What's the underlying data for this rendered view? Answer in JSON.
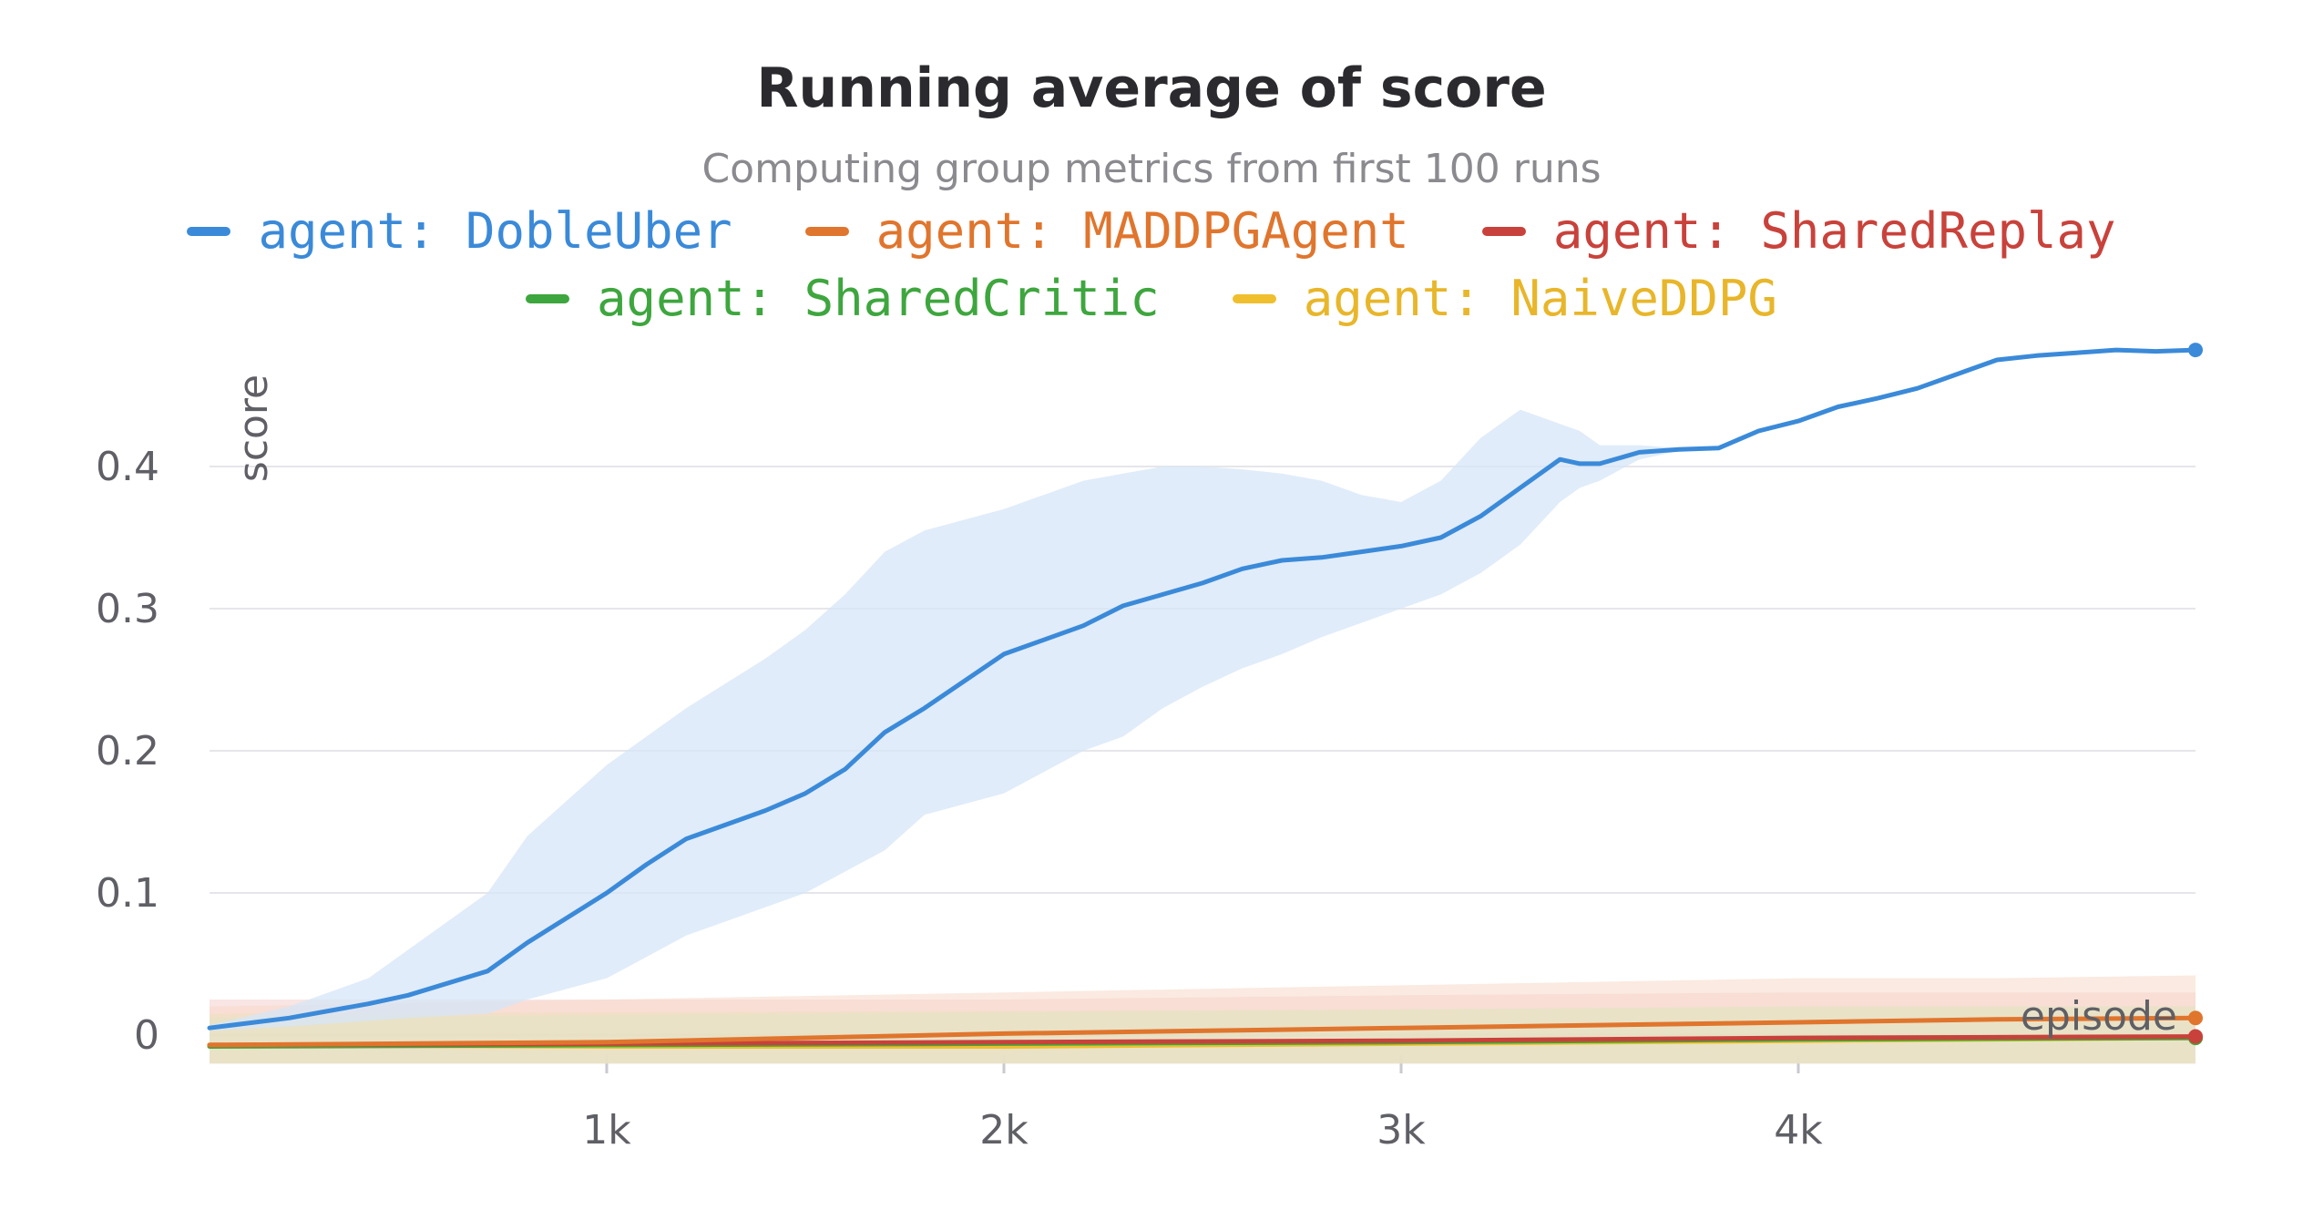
{
  "chart_data": {
    "type": "line",
    "title": "Running average of score",
    "subtitle": "Computing group metrics from first 100 runs",
    "xlabel": "episode",
    "ylabel": "score",
    "xlim": [
      0,
      5000
    ],
    "ylim": [
      -0.03,
      0.48
    ],
    "x_ticks": [
      1000,
      2000,
      3000,
      4000
    ],
    "x_tick_labels": [
      "1k",
      "2k",
      "3k",
      "4k"
    ],
    "y_ticks": [
      0,
      0.1,
      0.2,
      0.3,
      0.4
    ],
    "y_tick_labels": [
      "0",
      "0.1",
      "0.2",
      "0.3",
      "0.4"
    ],
    "grid": true,
    "legend_position": "top",
    "series": [
      {
        "name": "agent: DobleUber",
        "color": "#3b8ad9",
        "band_color": "#d5e6f7",
        "x": [
          0,
          200,
          400,
          500,
          700,
          800,
          1000,
          1100,
          1200,
          1400,
          1500,
          1600,
          1700,
          1800,
          2000,
          2100,
          2200,
          2300,
          2400,
          2500,
          2600,
          2700,
          2800,
          2900,
          3000,
          3100,
          3200,
          3300,
          3400,
          3450,
          3500,
          3600,
          3700,
          3800,
          3900,
          4000,
          4100,
          4200,
          4300,
          4400,
          4500,
          4600,
          4700,
          4800,
          4900,
          5000
        ],
        "values": [
          0.005,
          0.012,
          0.022,
          0.028,
          0.045,
          0.065,
          0.1,
          0.12,
          0.138,
          0.158,
          0.17,
          0.187,
          0.213,
          0.23,
          0.268,
          0.278,
          0.288,
          0.302,
          0.31,
          0.318,
          0.328,
          0.334,
          0.336,
          0.34,
          0.344,
          0.35,
          0.365,
          0.385,
          0.405,
          0.402,
          0.402,
          0.41,
          0.412,
          0.413,
          0.425,
          0.432,
          0.442,
          0.448,
          0.455,
          0.465,
          0.475,
          0.478,
          0.48,
          0.482,
          0.481,
          0.482
        ],
        "band_upper": [
          0.007,
          0.02,
          0.04,
          0.06,
          0.1,
          0.14,
          0.19,
          0.21,
          0.23,
          0.265,
          0.285,
          0.31,
          0.34,
          0.355,
          0.37,
          0.38,
          0.39,
          0.395,
          0.4,
          0.4,
          0.398,
          0.395,
          0.39,
          0.38,
          0.375,
          0.39,
          0.42,
          0.44,
          0.43,
          0.425,
          0.415,
          0.415,
          0.413,
          0.414,
          0.426,
          0.433,
          0.443,
          0.449,
          0.456,
          0.466,
          0.476,
          0.479,
          0.481,
          0.483,
          0.482,
          0.483
        ],
        "band_lower": [
          0.003,
          0.006,
          0.01,
          0.012,
          0.015,
          0.025,
          0.04,
          0.055,
          0.07,
          0.09,
          0.1,
          0.115,
          0.13,
          0.155,
          0.17,
          0.185,
          0.2,
          0.21,
          0.23,
          0.245,
          0.258,
          0.268,
          0.28,
          0.29,
          0.3,
          0.31,
          0.325,
          0.345,
          0.375,
          0.385,
          0.39,
          0.405,
          0.411,
          0.412,
          0.424,
          0.431,
          0.441,
          0.447,
          0.454,
          0.464,
          0.474,
          0.477,
          0.479,
          0.481,
          0.48,
          0.481
        ]
      },
      {
        "name": "agent: MADDPGAgent",
        "color": "#e0752d",
        "band_color": "#f7d9c8",
        "x": [
          0,
          1000,
          2000,
          3000,
          4000,
          4500,
          5000
        ],
        "values": [
          -0.007,
          -0.005,
          0.001,
          0.005,
          0.009,
          0.011,
          0.012
        ],
        "band_upper": [
          0.02,
          0.025,
          0.03,
          0.035,
          0.04,
          0.04,
          0.042
        ],
        "band_lower": [
          -0.02,
          -0.02,
          -0.02,
          -0.02,
          -0.02,
          -0.02,
          -0.02
        ]
      },
      {
        "name": "agent: SharedReplay",
        "color": "#c8423b",
        "band_color": "#f3d0cd",
        "x": [
          0,
          1000,
          2000,
          3000,
          4000,
          5000
        ],
        "values": [
          -0.007,
          -0.006,
          -0.005,
          -0.004,
          -0.002,
          -0.001
        ],
        "band_upper": [
          0.025,
          0.025,
          0.025,
          0.028,
          0.03,
          0.03
        ],
        "band_lower": [
          -0.02,
          -0.02,
          -0.02,
          -0.02,
          -0.02,
          -0.02
        ]
      },
      {
        "name": "agent: SharedCritic",
        "color": "#3ea63e",
        "band_color": "#d4ead0",
        "x": [
          0,
          1000,
          2000,
          3000,
          4000,
          5000
        ],
        "values": [
          -0.008,
          -0.007,
          -0.006,
          -0.005,
          -0.003,
          -0.002
        ],
        "band_upper": [
          0.012,
          0.014,
          0.016,
          0.018,
          0.02,
          0.02
        ],
        "band_lower": [
          -0.02,
          -0.02,
          -0.02,
          -0.02,
          -0.02,
          -0.02
        ]
      },
      {
        "name": "agent: NaiveDDPG",
        "color": "#f0bf2e",
        "band_color": "#ece0bd",
        "x": [
          0,
          1000,
          2000,
          3000,
          4000,
          5000
        ],
        "values": [
          -0.007,
          -0.008,
          -0.008,
          -0.006,
          -0.004,
          -0.002
        ],
        "band_upper": [
          0.015,
          0.016,
          0.017,
          0.018,
          0.02,
          0.02
        ],
        "band_lower": [
          -0.02,
          -0.02,
          -0.02,
          -0.02,
          -0.02,
          -0.02
        ]
      }
    ]
  }
}
